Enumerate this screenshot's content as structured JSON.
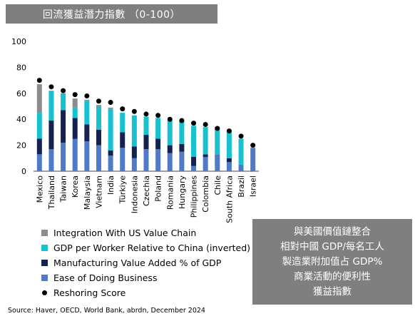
{
  "title": "回流獲益潛力指數 （0-100）",
  "callout_lines": [
    "與美國價值鏈整合",
    "相對中國 GDP/每名工人",
    "製造業附加值占 GDP%",
    "商業活動的便利性",
    "獲益指數"
  ],
  "source": "Source: Haver, OECD, World Bank, abrdn, December 2024",
  "chart_data": {
    "type": "bar",
    "stacked": true,
    "ylim": [
      0,
      100
    ],
    "yticks": [
      0,
      20,
      40,
      60,
      80,
      100
    ],
    "categories": [
      "Mexico",
      "Thailand",
      "Taiwan",
      "Korea",
      "Malaysia",
      "Vietnam",
      "India",
      "Türkiye",
      "Indonesia",
      "Czechia",
      "Poland",
      "Romania",
      "Hungary",
      "Philippines",
      "Colombia",
      "Chile",
      "South Africa",
      "Brazil",
      "Israel"
    ],
    "series": [
      {
        "name": "Ease of Doing Business",
        "color": "#4f7ac7",
        "values": [
          13,
          17,
          22,
          25,
          23,
          20,
          12,
          18,
          10,
          17,
          17,
          14,
          15,
          4,
          11,
          13,
          7,
          5,
          18
        ]
      },
      {
        "name": "Manufacturing Value Added % of GDP",
        "color": "#14224d",
        "values": [
          12,
          22,
          25,
          16,
          13,
          12,
          4,
          12,
          9,
          11,
          8,
          6,
          6,
          7,
          2,
          0,
          3,
          0,
          0
        ]
      },
      {
        "name": "GDP per Worker Relative to China (inverted)",
        "color": "#17c1d0",
        "values": [
          20,
          23,
          13,
          8,
          18,
          18,
          32,
          15,
          24,
          14,
          16,
          19,
          18,
          24,
          21,
          21,
          21,
          20,
          0
        ]
      },
      {
        "name": "Integration With US Value Chain",
        "color": "#8c8c8c",
        "values": [
          22,
          0,
          0,
          7,
          1,
          1,
          1,
          0,
          0,
          0,
          0,
          0,
          0,
          0,
          0,
          0,
          0,
          0,
          0
        ]
      }
    ],
    "scatter": {
      "name": "Reshoring Score",
      "color": "#000000",
      "values": [
        70,
        65,
        62,
        59,
        58,
        54,
        53,
        48,
        46,
        44,
        43,
        40,
        39,
        37,
        36,
        33,
        31,
        27,
        20
      ]
    },
    "legend_order": [
      "Integration With US Value Chain",
      "GDP per Worker Relative to China (inverted)",
      "Manufacturing Value Added % of GDP",
      "Ease of Doing Business",
      "Reshoring Score"
    ],
    "legend_position": "bottom-left"
  }
}
